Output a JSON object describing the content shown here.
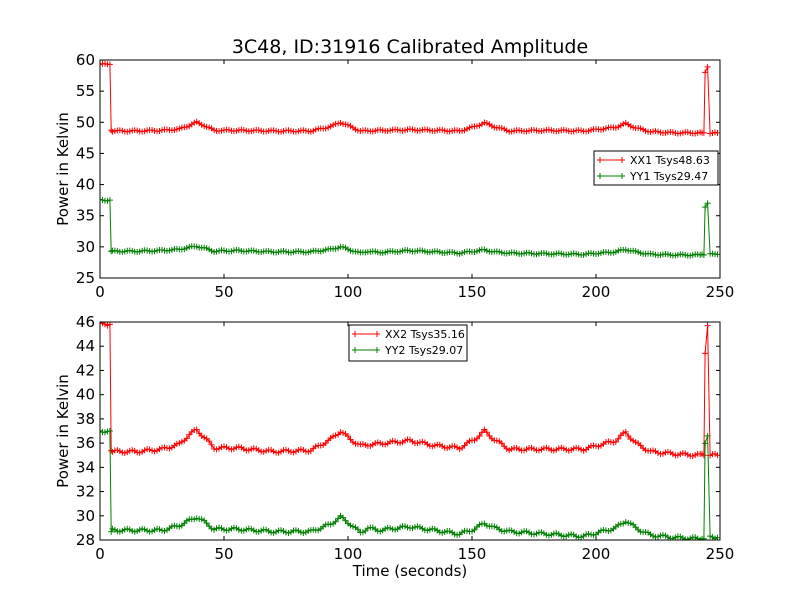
{
  "title": "3C48, ID:31916 Calibrated Amplitude",
  "colors": {
    "xx": "#ff0000",
    "yy": "#008000"
  },
  "chart_data": [
    {
      "type": "line",
      "xlabel": "",
      "ylabel": "Power in Kelvin",
      "xlim": [
        0,
        250
      ],
      "ylim": [
        25,
        60
      ],
      "xticks": [
        "0",
        "50",
        "100",
        "150",
        "200",
        "250"
      ],
      "yticks": [
        "25",
        "30",
        "35",
        "40",
        "45",
        "50",
        "55",
        "60"
      ],
      "grid": false,
      "legend_position": "center-right",
      "series": [
        {
          "name": "XX1 Tsys48.63",
          "color": "#ff0000",
          "x": [
            0,
            4,
            4.5,
            5,
            15,
            25,
            32,
            36,
            39,
            42,
            46,
            55,
            70,
            85,
            93,
            97,
            101,
            105,
            115,
            125,
            135,
            145,
            151,
            155,
            159,
            165,
            180,
            195,
            208,
            212,
            216,
            222,
            232,
            242,
            243.5,
            244,
            245,
            246,
            247,
            249
          ],
          "y": [
            59.3,
            59.3,
            48.6,
            48.6,
            48.6,
            48.7,
            48.9,
            49.5,
            50.0,
            49.5,
            48.7,
            48.7,
            48.6,
            48.6,
            49.3,
            50.0,
            49.3,
            48.6,
            48.7,
            48.8,
            48.7,
            48.6,
            49.3,
            49.9,
            49.3,
            48.6,
            48.7,
            48.6,
            49.2,
            49.8,
            49.1,
            48.5,
            48.3,
            48.3,
            48.3,
            58.0,
            58.9,
            48.3,
            48.3,
            48.3
          ]
        },
        {
          "name": "YY1 Tsys29.47",
          "color": "#008000",
          "x": [
            0,
            4,
            4.5,
            5,
            15,
            25,
            32,
            36,
            39,
            42,
            46,
            55,
            70,
            85,
            93,
            97,
            101,
            105,
            108,
            112,
            125,
            135,
            145,
            151,
            155,
            159,
            165,
            180,
            195,
            208,
            212,
            216,
            222,
            232,
            242,
            243.5,
            244,
            245,
            246,
            247,
            249
          ],
          "y": [
            37.5,
            37.5,
            29.3,
            29.3,
            29.3,
            29.4,
            29.6,
            29.9,
            30.1,
            29.8,
            29.3,
            29.4,
            29.2,
            29.2,
            29.6,
            30.0,
            29.5,
            29.0,
            29.3,
            29.1,
            29.4,
            29.2,
            29.0,
            29.3,
            29.5,
            29.2,
            29.0,
            28.9,
            28.8,
            29.2,
            29.6,
            29.2,
            28.8,
            28.7,
            28.7,
            28.7,
            36.5,
            37.0,
            28.8,
            28.8,
            28.8
          ]
        }
      ]
    },
    {
      "type": "line",
      "xlabel": "Time (seconds)",
      "ylabel": "Power in Kelvin",
      "xlim": [
        0,
        250
      ],
      "ylim": [
        28,
        46
      ],
      "xticks": [
        "0",
        "50",
        "100",
        "150",
        "200",
        "250"
      ],
      "yticks": [
        "28",
        "30",
        "32",
        "34",
        "36",
        "38",
        "40",
        "42",
        "44",
        "46"
      ],
      "grid": false,
      "legend_position": "top-center",
      "series": [
        {
          "name": "XX2 Tsys35.16",
          "color": "#ff0000",
          "x": [
            0,
            4,
            4.5,
            5,
            15,
            25,
            32,
            36,
            39,
            42,
            46,
            55,
            70,
            85,
            93,
            97,
            101,
            105,
            115,
            125,
            135,
            145,
            151,
            155,
            159,
            165,
            180,
            195,
            208,
            212,
            216,
            222,
            232,
            242,
            243.5,
            244,
            245,
            246,
            247,
            249
          ],
          "y": [
            45.8,
            45.8,
            35.3,
            35.3,
            35.3,
            35.5,
            35.9,
            36.7,
            37.1,
            36.5,
            35.6,
            35.6,
            35.3,
            35.4,
            36.3,
            37.0,
            36.3,
            35.8,
            36.0,
            36.2,
            35.8,
            35.6,
            36.3,
            37.0,
            36.3,
            35.5,
            35.5,
            35.5,
            36.2,
            36.9,
            36.0,
            35.3,
            35.1,
            35.0,
            35.0,
            43.5,
            45.7,
            35.0,
            35.0,
            35.0
          ]
        },
        {
          "name": "YY2 Tsys29.07",
          "color": "#008000",
          "x": [
            0,
            4,
            4.5,
            5,
            15,
            25,
            32,
            36,
            39,
            42,
            46,
            55,
            70,
            85,
            93,
            97,
            101,
            105,
            108,
            112,
            125,
            135,
            145,
            151,
            155,
            159,
            165,
            180,
            195,
            208,
            212,
            216,
            222,
            232,
            242,
            243.5,
            244,
            245,
            246,
            247,
            249
          ],
          "y": [
            37.0,
            37.0,
            28.8,
            28.8,
            28.8,
            28.8,
            29.2,
            29.6,
            29.9,
            29.5,
            28.9,
            28.9,
            28.7,
            28.7,
            29.3,
            29.9,
            29.3,
            28.6,
            29.0,
            28.8,
            29.1,
            28.8,
            28.5,
            28.9,
            29.4,
            29.0,
            28.7,
            28.5,
            28.3,
            29.0,
            29.6,
            29.0,
            28.4,
            28.2,
            28.1,
            28.1,
            36.0,
            36.6,
            28.2,
            28.2,
            28.2
          ]
        }
      ]
    }
  ]
}
